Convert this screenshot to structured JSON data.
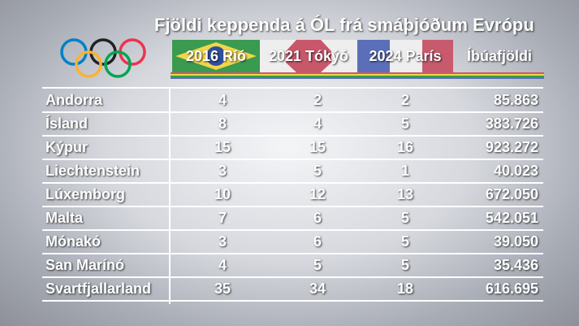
{
  "title": "Fjöldi keppenda á ÓL frá smáþjóðum Evrópu",
  "columns": [
    "2016 Ríó",
    "2021 Tókýó",
    "2024 París",
    "Íbúafjöldi"
  ],
  "rows": [
    {
      "country": "Andorra",
      "rio": "4",
      "tokyo": "2",
      "paris": "2",
      "pop": "85.863"
    },
    {
      "country": "Ísland",
      "rio": "8",
      "tokyo": "4",
      "paris": "5",
      "pop": "383.726"
    },
    {
      "country": "Kýpur",
      "rio": "15",
      "tokyo": "15",
      "paris": "16",
      "pop": "923.272"
    },
    {
      "country": "Liechtenstein",
      "rio": "3",
      "tokyo": "5",
      "paris": "1",
      "pop": "40.023"
    },
    {
      "country": "Lúxemborg",
      "rio": "10",
      "tokyo": "12",
      "paris": "13",
      "pop": "672.050"
    },
    {
      "country": "Malta",
      "rio": "7",
      "tokyo": "6",
      "paris": "5",
      "pop": "542.051"
    },
    {
      "country": "Mónakó",
      "rio": "3",
      "tokyo": "6",
      "paris": "5",
      "pop": "39.050"
    },
    {
      "country": "San Marínó",
      "rio": "4",
      "tokyo": "5",
      "paris": "5",
      "pop": "35.436"
    },
    {
      "country": "Svartfjallarland",
      "rio": "35",
      "tokyo": "34",
      "paris": "18",
      "pop": "616.695"
    }
  ],
  "chart_data": {
    "type": "table",
    "title": "Fjöldi keppenda á ÓL frá smáþjóðum Evrópu",
    "columns": [
      "",
      "2016 Ríó",
      "2021 Tókýó",
      "2024 París",
      "Íbúafjöldi"
    ],
    "rows": [
      [
        "Andorra",
        4,
        2,
        2,
        "85.863"
      ],
      [
        "Ísland",
        8,
        4,
        5,
        "383.726"
      ],
      [
        "Kýpur",
        15,
        15,
        16,
        "923.272"
      ],
      [
        "Liechtenstein",
        3,
        5,
        1,
        "40.023"
      ],
      [
        "Lúxemborg",
        10,
        12,
        13,
        "672.050"
      ],
      [
        "Malta",
        7,
        6,
        5,
        "542.051"
      ],
      [
        "Mónakó",
        3,
        6,
        5,
        "39.050"
      ],
      [
        "San Marínó",
        4,
        5,
        5,
        "35.436"
      ],
      [
        "Svartfjallarland",
        35,
        34,
        18,
        "616.695"
      ]
    ]
  },
  "colors": {
    "ring_blue": "#0081c8",
    "ring_yellow": "#fcb131",
    "ring_black": "#222222",
    "ring_green": "#00a651",
    "ring_red": "#ee334e",
    "brazil_green": "#3a9a4f",
    "brazil_yellow": "#f0d64a",
    "brazil_blue": "#2f4f9e",
    "tokyo_red": "#c9576a",
    "paris_blue": "#5b6fb8",
    "paris_red": "#c85a6e"
  }
}
